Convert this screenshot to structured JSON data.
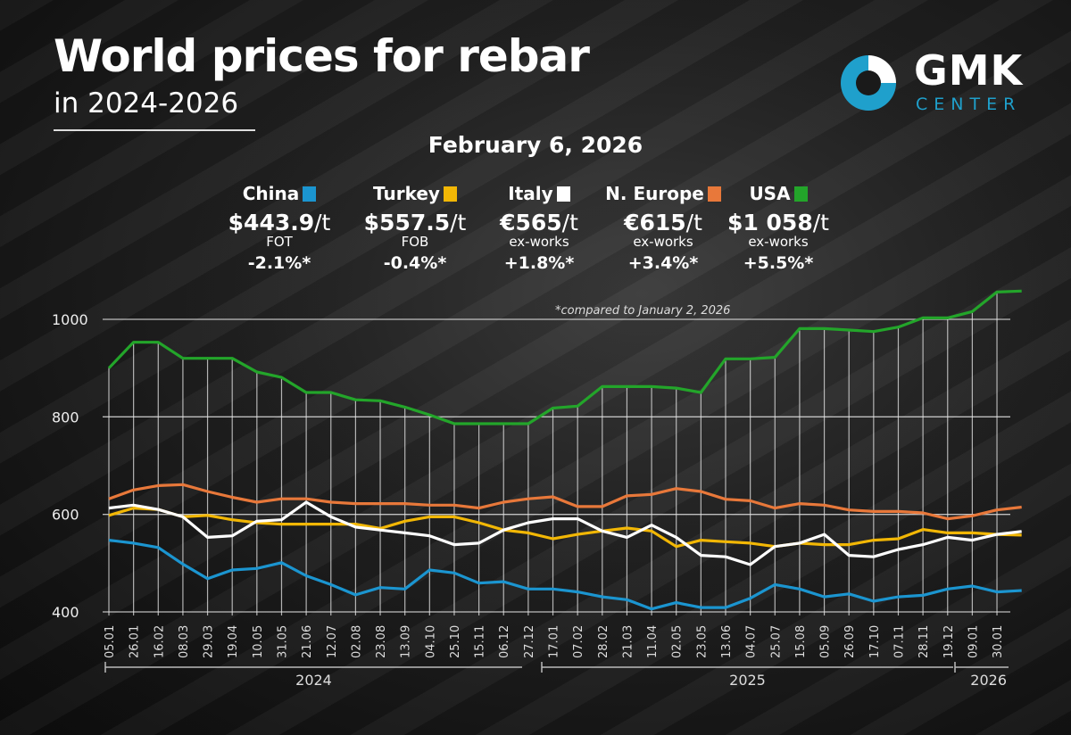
{
  "header": {
    "title": "World prices for rebar",
    "subtitle": "in 2024-2026",
    "date": "February 6, 2026",
    "logo_main": "GMK",
    "logo_sub": "CENTER",
    "note": "*compared to January 2, 2026"
  },
  "legend": [
    {
      "name": "China",
      "color": "#1b95d0",
      "price_prefix": "$",
      "price": "443.9",
      "unit": "/t",
      "basis": "FOT",
      "change": "-2.1%*"
    },
    {
      "name": "Turkey",
      "color": "#f2b705",
      "price_prefix": "$",
      "price": "557.5",
      "unit": "/t",
      "basis": "FOB",
      "change": "-0.4%*"
    },
    {
      "name": "Italy",
      "color": "#ffffff",
      "price_prefix": "€",
      "price": "565",
      "unit": "/t",
      "basis": "ex-works",
      "change": "+1.8%*"
    },
    {
      "name": "N. Europe",
      "color": "#e8783a",
      "price_prefix": "€",
      "price": "615",
      "unit": "/t",
      "basis": "ex-works",
      "change": "+3.4%*"
    },
    {
      "name": "USA",
      "color": "#23a52a",
      "price_prefix": "$",
      "price": "1 058",
      "unit": "/t",
      "basis": "ex-works",
      "change": "+5.5%*"
    }
  ],
  "chart_data": {
    "type": "line",
    "title": "World prices for rebar in 2024-2026",
    "xlabel": "",
    "ylabel": "",
    "ylim": [
      400,
      1050
    ],
    "yticks": [
      400,
      600,
      800,
      1000
    ],
    "grid": true,
    "x": [
      "05.01",
      "26.01",
      "16.02",
      "08.03",
      "29.03",
      "19.04",
      "10.05",
      "31.05",
      "21.06",
      "12.07",
      "02.08",
      "23.08",
      "13.09",
      "04.10",
      "25.10",
      "15.11",
      "06.12",
      "27.12",
      "17.01",
      "07.02",
      "28.02",
      "21.03",
      "11.04",
      "02.05",
      "23.05",
      "13.06",
      "04.07",
      "25.07",
      "15.08",
      "05.09",
      "26.09",
      "17.10",
      "07.11",
      "28.11",
      "19.12",
      "09.01",
      "30.01",
      "06.02"
    ],
    "xtick_labels": [
      "05.01",
      "26.01",
      "16.02",
      "08.03",
      "29.03",
      "19.04",
      "10.05",
      "31.05",
      "21.06",
      "12.07",
      "02.08",
      "23.08",
      "13.09",
      "04.10",
      "25.10",
      "15.11",
      "06.12",
      "27.12",
      "17.01",
      "07.02",
      "28.02",
      "21.03",
      "11.04",
      "02.05",
      "23.05",
      "13.06",
      "04.07",
      "25.07",
      "15.08",
      "05.09",
      "26.09",
      "17.10",
      "07.11",
      "28.11",
      "19.12",
      "09.01",
      "30.01"
    ],
    "year_groups": [
      {
        "label": "2024",
        "from": 0,
        "to": 17
      },
      {
        "label": "2025",
        "from": 18,
        "to": 34
      },
      {
        "label": "2026",
        "from": 35,
        "to": 37
      }
    ],
    "series": [
      {
        "name": "USA",
        "color": "#23a52a",
        "values": [
          900,
          953,
          953,
          920,
          920,
          920,
          892,
          881,
          850,
          850,
          835,
          833,
          820,
          804,
          786,
          786,
          786,
          786,
          818,
          822,
          862,
          862,
          862,
          859,
          850,
          919,
          919,
          922,
          981,
          981,
          978,
          975,
          984,
          1003,
          1003,
          1016,
          1056,
          1058
        ]
      },
      {
        "name": "N. Europe",
        "color": "#e8783a",
        "values": [
          632,
          650,
          659,
          661,
          647,
          635,
          625,
          632,
          632,
          625,
          622,
          622,
          622,
          619,
          619,
          613,
          625,
          632,
          636,
          616,
          616,
          638,
          641,
          653,
          647,
          631,
          628,
          613,
          622,
          619,
          609,
          606,
          606,
          603,
          591,
          597,
          609,
          615
        ]
      },
      {
        "name": "Turkey",
        "color": "#f2b705",
        "values": [
          598,
          613,
          610,
          595,
          598,
          589,
          583,
          580,
          580,
          580,
          580,
          571,
          586,
          595,
          595,
          583,
          568,
          562,
          550,
          559,
          566,
          572,
          566,
          534,
          547,
          544,
          541,
          534,
          541,
          538,
          538,
          547,
          550,
          569,
          562,
          562,
          559,
          557.5
        ]
      },
      {
        "name": "Italy",
        "color": "#ffffff",
        "values": [
          613,
          619,
          610,
          595,
          553,
          556,
          586,
          589,
          625,
          595,
          574,
          568,
          562,
          556,
          538,
          541,
          568,
          583,
          591,
          591,
          566,
          553,
          578,
          553,
          516,
          513,
          497,
          534,
          541,
          559,
          516,
          513,
          528,
          538,
          553,
          547,
          559,
          565
        ]
      },
      {
        "name": "China",
        "color": "#1b95d0",
        "values": [
          547,
          541,
          532,
          498,
          468,
          486,
          489,
          501,
          474,
          456,
          435,
          450,
          447,
          486,
          480,
          459,
          462,
          447,
          447,
          441,
          431,
          425,
          406,
          419,
          409,
          409,
          428,
          456,
          447,
          431,
          437,
          422,
          431,
          434,
          447,
          453,
          441,
          443.9
        ]
      }
    ]
  }
}
